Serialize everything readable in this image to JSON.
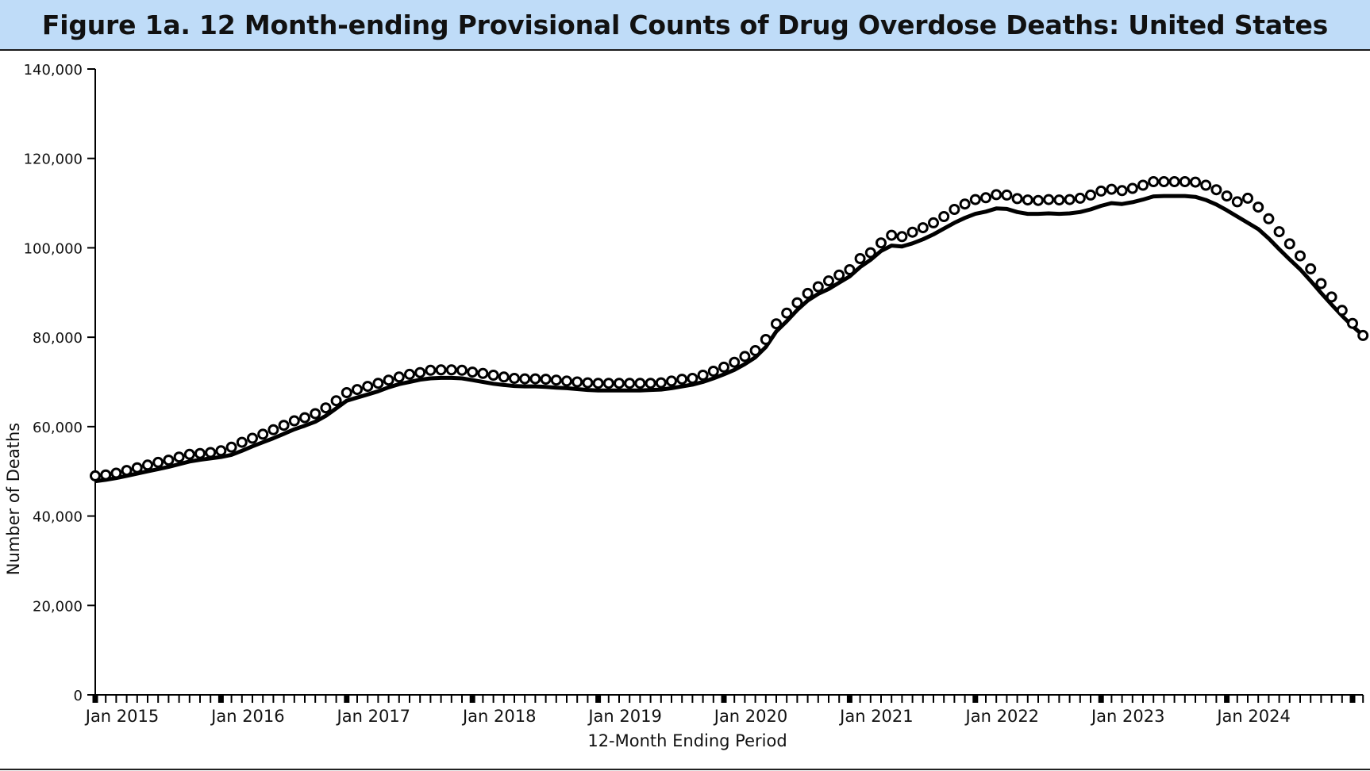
{
  "colors": {
    "title_bg": "#bfdcf8",
    "series": "#000000",
    "marker_fill": "#ffffff"
  },
  "chart_data": {
    "type": "line",
    "title": "Figure 1a. 12 Month-ending Provisional Counts of Drug Overdose Deaths: United States",
    "xlabel": "12-Month Ending Period",
    "ylabel": "Number of Deaths",
    "ylim": [
      0,
      140000
    ],
    "yticks": [
      0,
      20000,
      40000,
      60000,
      80000,
      100000,
      120000,
      140000
    ],
    "ytick_labels": [
      "0",
      "20,000",
      "40,000",
      "60,000",
      "80,000",
      "100,000",
      "120,000",
      "140,000"
    ],
    "x_start": "Jan 2015",
    "x_end": "Dec 2024",
    "xtick_labels": [
      "Jan 2015",
      "Jan 2016",
      "Jan 2017",
      "Jan 2018",
      "Jan 2019",
      "Jan 2020",
      "Jan 2021",
      "Jan 2022",
      "Jan 2023",
      "Jan 2024"
    ],
    "grid": false,
    "series": [
      {
        "style": "circles",
        "values": [
          49000,
          49200,
          49600,
          50200,
          50800,
          51400,
          52000,
          52500,
          53200,
          53800,
          54000,
          54200,
          54600,
          55400,
          56500,
          57400,
          58300,
          59300,
          60300,
          61300,
          62000,
          62900,
          64200,
          65800,
          67600,
          68300,
          69000,
          69700,
          70400,
          71100,
          71700,
          72100,
          72600,
          72700,
          72700,
          72600,
          72200,
          71900,
          71500,
          71100,
          70800,
          70700,
          70700,
          70600,
          70400,
          70200,
          70000,
          69800,
          69700,
          69700,
          69700,
          69700,
          69700,
          69700,
          69800,
          70200,
          70600,
          70800,
          71500,
          72400,
          73300,
          74400,
          75700,
          77000,
          79500,
          83000,
          85400,
          87700,
          89800,
          91300,
          92600,
          93900,
          95100,
          97600,
          98900,
          101100,
          102800,
          102500,
          103500,
          104500,
          105600,
          107000,
          108600,
          109800,
          110800,
          111200,
          111900,
          111800,
          111000,
          110700,
          110600,
          110800,
          110700,
          110800,
          111100,
          111800,
          112700,
          113100,
          112800,
          113300,
          114000,
          114800,
          114800,
          114800,
          114800,
          114700,
          114000,
          113000,
          111600,
          110300,
          111100,
          109100,
          106500,
          103600,
          100900,
          98200,
          95300,
          92000,
          89000,
          86000,
          83100,
          80400
        ]
      },
      {
        "style": "line",
        "values": [
          47800,
          48100,
          48500,
          49000,
          49500,
          50000,
          50500,
          51000,
          51600,
          52200,
          52600,
          52900,
          53200,
          53700,
          54600,
          55600,
          56500,
          57400,
          58400,
          59400,
          60200,
          61100,
          62400,
          64100,
          65800,
          66500,
          67200,
          67900,
          68800,
          69500,
          70000,
          70500,
          70800,
          70900,
          70900,
          70800,
          70400,
          70000,
          69600,
          69300,
          69100,
          69000,
          69000,
          68900,
          68700,
          68600,
          68400,
          68200,
          68100,
          68100,
          68100,
          68100,
          68100,
          68200,
          68300,
          68600,
          69000,
          69400,
          70000,
          70800,
          71700,
          72700,
          74000,
          75500,
          77800,
          81300,
          83600,
          86100,
          88200,
          89700,
          90800,
          92200,
          93600,
          95700,
          97300,
          99300,
          100500,
          100300,
          101000,
          101900,
          103000,
          104300,
          105600,
          106700,
          107600,
          108100,
          108800,
          108700,
          108000,
          107600,
          107600,
          107700,
          107600,
          107700,
          108000,
          108600,
          109400,
          110000,
          109800,
          110200,
          110800,
          111500,
          111600,
          111600,
          111600,
          111400,
          110700,
          109700,
          108400,
          107000,
          105600,
          104200,
          102100,
          99700,
          97400,
          95200,
          92600,
          89900,
          87300,
          84800,
          82500,
          80400
        ]
      }
    ]
  }
}
